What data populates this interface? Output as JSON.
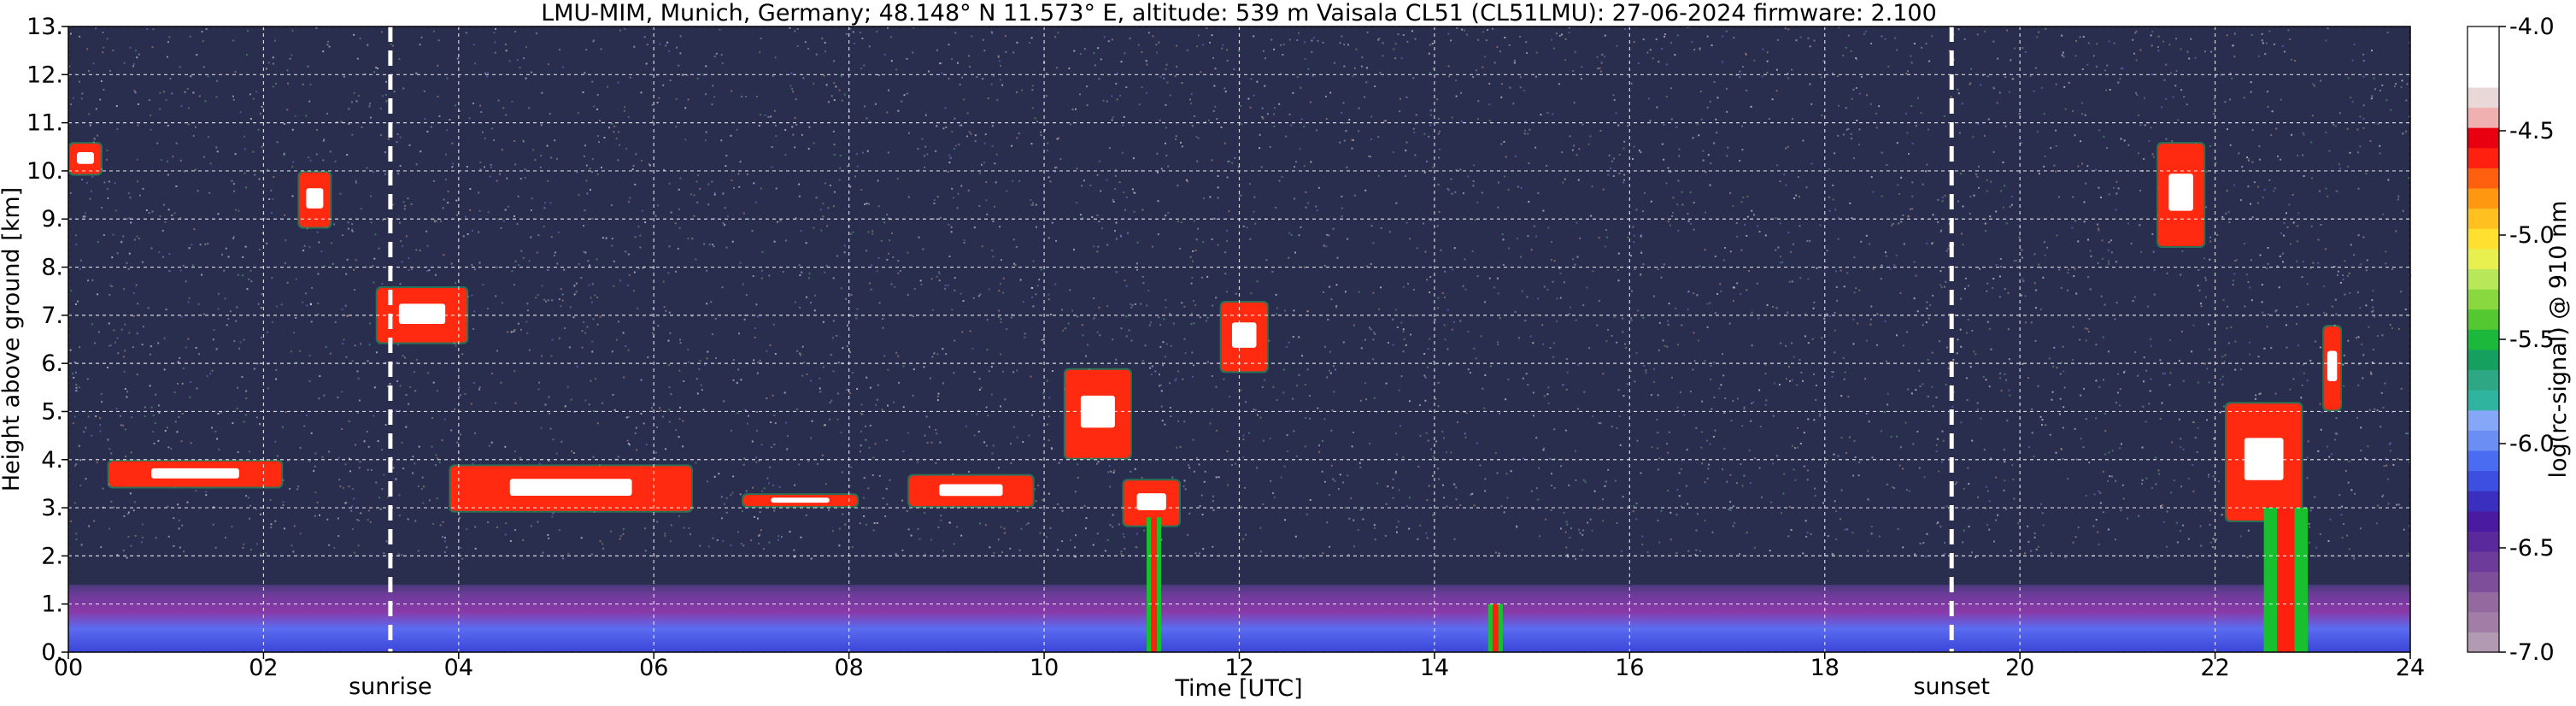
{
  "chart_data": {
    "type": "heatmap",
    "title": "LMU-MIM, Munich, Germany; 48.148° N 11.573° E, altitude: 539 m    Vaisala CL51 (CL51LMU): 27-06-2024    firmware: 2.100",
    "xlabel": "Time [UTC]",
    "ylabel": "Height above ground [km]",
    "xlim": [
      0,
      24
    ],
    "ylim": [
      0,
      13
    ],
    "x_ticks": [
      "00",
      "02",
      "04",
      "06",
      "08",
      "10",
      "12",
      "14",
      "16",
      "18",
      "20",
      "22",
      "24"
    ],
    "y_ticks": [
      "0.",
      "1.",
      "2.",
      "3.",
      "4.",
      "5.",
      "6.",
      "7.",
      "8.",
      "9.",
      "10.",
      "11.",
      "12.",
      "13."
    ],
    "grid": true,
    "markers": [
      {
        "label": "sunrise",
        "time": 3.3
      },
      {
        "label": "sunset",
        "time": 19.3
      }
    ],
    "colorbar": {
      "label": "log(rc-signal) @ 910 nm",
      "range": [
        -7.0,
        -4.0
      ],
      "ticks": [
        "-4.0",
        "-4.5",
        "-5.0",
        "-5.5",
        "-6.0",
        "-6.5",
        "-7.0"
      ],
      "colors": [
        "#b29ab2",
        "#a27ea6",
        "#93699f",
        "#7e4e9a",
        "#6d3b9a",
        "#5a2a9c",
        "#4a1aa0",
        "#3b2fc0",
        "#3c4fe0",
        "#4a6cf0",
        "#6b8ef5",
        "#86a6f7",
        "#2fb4a0",
        "#2ea884",
        "#15a060",
        "#1cb83c",
        "#53c830",
        "#8ad840",
        "#b8e85a",
        "#e8f050",
        "#ffe030",
        "#ffc020",
        "#ff9810",
        "#ff6010",
        "#ff2010",
        "#e80010",
        "#f0b0b0",
        "#e8d8d8",
        "#ffffff",
        "#ffffff",
        "#ffffff"
      ]
    },
    "regions": [
      {
        "kind": "boundary_layer",
        "t0": 0,
        "t1": 24,
        "h0": 0,
        "h1": 1.4
      },
      {
        "kind": "cloud",
        "t0": 0.0,
        "t1": 0.35,
        "h0": 9.9,
        "h1": 10.6
      },
      {
        "kind": "cloud",
        "t0": 2.35,
        "t1": 2.7,
        "h0": 8.8,
        "h1": 10.0
      },
      {
        "kind": "cloud",
        "t0": 3.15,
        "t1": 4.1,
        "h0": 6.4,
        "h1": 7.6
      },
      {
        "kind": "cloud",
        "t0": 0.4,
        "t1": 2.2,
        "h0": 3.4,
        "h1": 4.0
      },
      {
        "kind": "cloud",
        "t0": 3.9,
        "t1": 6.4,
        "h0": 2.9,
        "h1": 3.9
      },
      {
        "kind": "cloud",
        "t0": 6.9,
        "t1": 8.1,
        "h0": 3.0,
        "h1": 3.3
      },
      {
        "kind": "cloud",
        "t0": 8.6,
        "t1": 9.9,
        "h0": 3.0,
        "h1": 3.7
      },
      {
        "kind": "cloud",
        "t0": 10.2,
        "t1": 10.9,
        "h0": 4.0,
        "h1": 5.9
      },
      {
        "kind": "cloud",
        "t0": 10.8,
        "t1": 11.4,
        "h0": 2.6,
        "h1": 3.6
      },
      {
        "kind": "cloud",
        "t0": 11.8,
        "t1": 12.3,
        "h0": 5.8,
        "h1": 7.3
      },
      {
        "kind": "cloud",
        "t0": 21.4,
        "t1": 21.9,
        "h0": 8.4,
        "h1": 10.6
      },
      {
        "kind": "cloud",
        "t0": 22.1,
        "t1": 22.9,
        "h0": 2.7,
        "h1": 5.2
      },
      {
        "kind": "cloud",
        "t0": 23.1,
        "t1": 23.3,
        "h0": 5.0,
        "h1": 6.8
      },
      {
        "kind": "precipitation",
        "t0": 11.05,
        "t1": 11.2,
        "h0": 0,
        "h1": 2.8
      },
      {
        "kind": "precipitation",
        "t0": 14.55,
        "t1": 14.7,
        "h0": 0,
        "h1": 1.0
      },
      {
        "kind": "precipitation",
        "t0": 22.5,
        "t1": 22.95,
        "h0": 0,
        "h1": 3.0
      }
    ]
  }
}
